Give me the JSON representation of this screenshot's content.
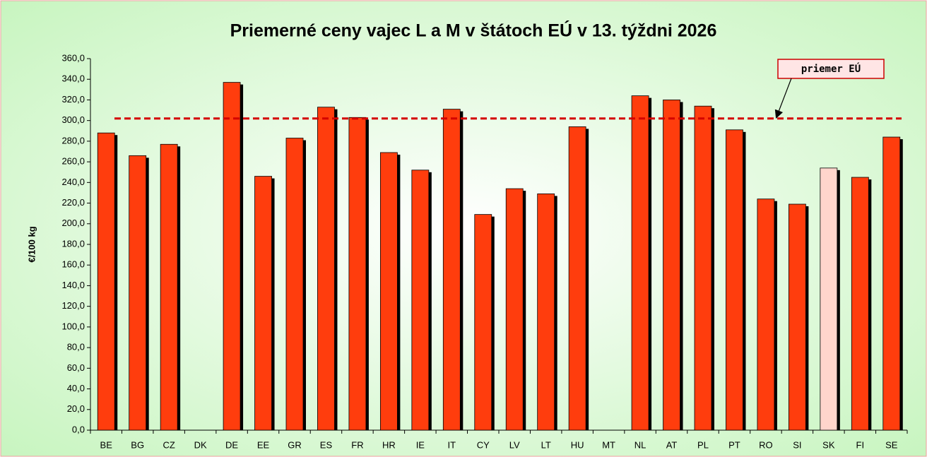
{
  "chart_data": {
    "type": "bar",
    "title": "Priemerné ceny vajec L a M v štátoch EÚ v 13. týždni 2026",
    "y_label": "€/100 kg",
    "categories": [
      "BE",
      "BG",
      "CZ",
      "DK",
      "DE",
      "EE",
      "GR",
      "ES",
      "FR",
      "HR",
      "IE",
      "IT",
      "CY",
      "LV",
      "LT",
      "HU",
      "MT",
      "NL",
      "AT",
      "PL",
      "PT",
      "RO",
      "SI",
      "SK",
      "FI",
      "SE"
    ],
    "values": [
      288,
      266,
      277,
      null,
      337,
      246,
      283,
      313,
      303,
      269,
      252,
      311,
      209,
      234,
      229,
      294,
      null,
      324,
      320,
      314,
      291,
      224,
      219,
      254,
      245,
      284
    ],
    "colors": [
      "#ff3d0d",
      "#ff3d0d",
      "#ff3d0d",
      "#ff3d0d",
      "#ff3d0d",
      "#ff3d0d",
      "#ff3d0d",
      "#ff3d0d",
      "#ff3d0d",
      "#ff3d0d",
      "#ff3d0d",
      "#ff3d0d",
      "#ff3d0d",
      "#ff3d0d",
      "#ff3d0d",
      "#ff3d0d",
      "#ff3d0d",
      "#ff3d0d",
      "#ff3d0d",
      "#ff3d0d",
      "#ff3d0d",
      "#ff3d0d",
      "#ff3d0d",
      "#ffd5cc",
      "#ff3d0d",
      "#ff3d0d"
    ],
    "average": {
      "name": "priemer EÚ",
      "value": 302,
      "color": "#d40000"
    },
    "ylim": [
      0,
      360
    ],
    "yticks": [
      {
        "value": 0,
        "label": "0,0"
      },
      {
        "value": 20,
        "label": "20,0"
      },
      {
        "value": 40,
        "label": "40,0"
      },
      {
        "value": 60,
        "label": "60,0"
      },
      {
        "value": 80,
        "label": "80,0"
      },
      {
        "value": 100,
        "label": "100,0"
      },
      {
        "value": 120,
        "label": "120,0"
      },
      {
        "value": 140,
        "label": "140,0"
      },
      {
        "value": 160,
        "label": "160,0"
      },
      {
        "value": 180,
        "label": "180,0"
      },
      {
        "value": 200,
        "label": "200,0"
      },
      {
        "value": 220,
        "label": "220,0"
      },
      {
        "value": 240,
        "label": "240,0"
      },
      {
        "value": 260,
        "label": "260,0"
      },
      {
        "value": 280,
        "label": "280,0"
      },
      {
        "value": 300,
        "label": "300,0"
      },
      {
        "value": 320,
        "label": "320,0"
      },
      {
        "value": 340,
        "label": "340,0"
      },
      {
        "value": 360,
        "label": "360,0"
      }
    ],
    "grid": false
  }
}
